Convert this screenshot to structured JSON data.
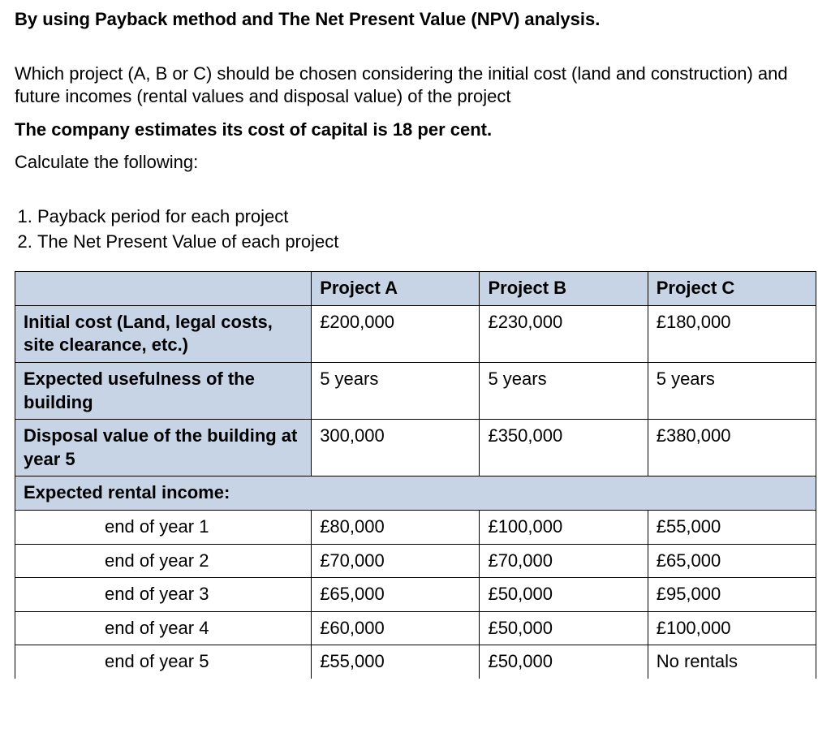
{
  "heading": "By using Payback method and The Net Present Value (NPV) analysis.",
  "intro": "Which project (A, B or C) should be chosen considering the initial cost (land and construction) and future incomes (rental values and disposal value) of the project",
  "capital": "The company estimates its cost of capital is 18 per cent.",
  "calc": "Calculate the following:",
  "items": {
    "i1": "Payback period for each project",
    "i2": "The Net Present Value of each project"
  },
  "table": {
    "cols": {
      "a": "Project A",
      "b": "Project B",
      "c": "Project C"
    },
    "r1": {
      "label": "Initial cost (Land, legal costs, site clearance, etc.)",
      "a": "£200,000",
      "b": "£230,000",
      "c": "£180,000"
    },
    "r2": {
      "label": "Expected usefulness of the building",
      "a": "5 years",
      "b": "5 years",
      "c": "5 years"
    },
    "r3": {
      "label": "Disposal value of the building at year 5",
      "a": "300,000",
      "b": "£350,000",
      "c": "£380,000"
    },
    "r4": {
      "label": "Expected rental income:"
    },
    "y1": {
      "label": "end of year 1",
      "a": "£80,000",
      "b": "£100,000",
      "c": "£55,000"
    },
    "y2": {
      "label": "end of year 2",
      "a": "£70,000",
      "b": "£70,000",
      "c": "£65,000"
    },
    "y3": {
      "label": "end of year 3",
      "a": "£65,000",
      "b": "£50,000",
      "c": "£95,000"
    },
    "y4": {
      "label": "end of year 4",
      "a": "£60,000",
      "b": "£50,000",
      "c": "£100,000"
    },
    "y5": {
      "label": "end of year 5",
      "a": "£55,000",
      "b": "£50,000",
      "c": "No rentals"
    }
  },
  "styling": {
    "shade_color": "#c7d4e5",
    "border_color": "#000000",
    "font_size": 22,
    "page_bg": "#ffffff"
  }
}
